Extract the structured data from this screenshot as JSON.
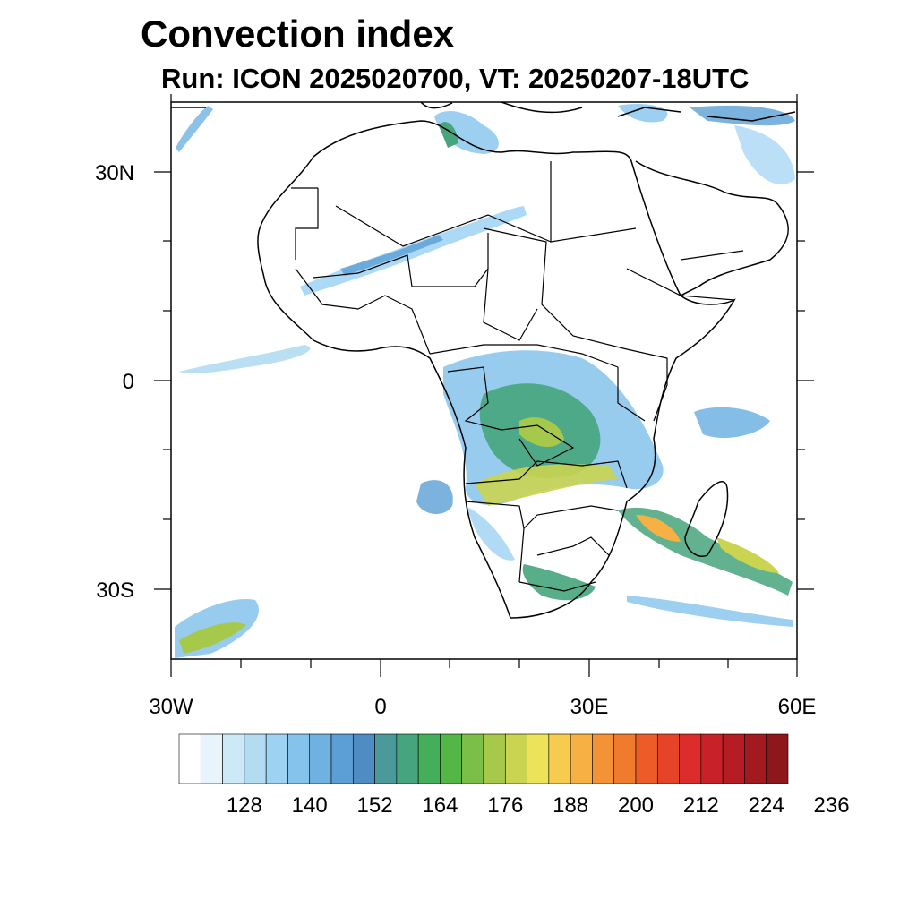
{
  "header": {
    "title": "Convection index",
    "subtitle": "Run: ICON 2025020700,  VT: 20250207-18UTC"
  },
  "map": {
    "lat_labels": [
      "30N",
      "0",
      "30S"
    ],
    "lon_labels": [
      "30W",
      "0",
      "30E",
      "60E"
    ],
    "extent": {
      "lon": [
        -30,
        60
      ],
      "lat": [
        -40,
        40
      ]
    }
  },
  "colorbar": {
    "colors": [
      "#ffffff",
      "#e8f4fb",
      "#cde8f6",
      "#b3dcf2",
      "#9dd2f3",
      "#85c3ec",
      "#6fb2e2",
      "#5b9fd6",
      "#4f8cc4",
      "#4b9a9a",
      "#46a57c",
      "#44af5a",
      "#53b748",
      "#7bbf48",
      "#a6c84b",
      "#cad450",
      "#ece35a",
      "#f7cc4e",
      "#f6b043",
      "#f49238",
      "#f07a2e",
      "#ec5b28",
      "#e54428",
      "#dc2d2a",
      "#c92128",
      "#b51c24",
      "#a21a20",
      "#8e171c"
    ],
    "tick_labels": [
      "128",
      "140",
      "152",
      "164",
      "176",
      "188",
      "200",
      "212",
      "224",
      "236"
    ]
  }
}
